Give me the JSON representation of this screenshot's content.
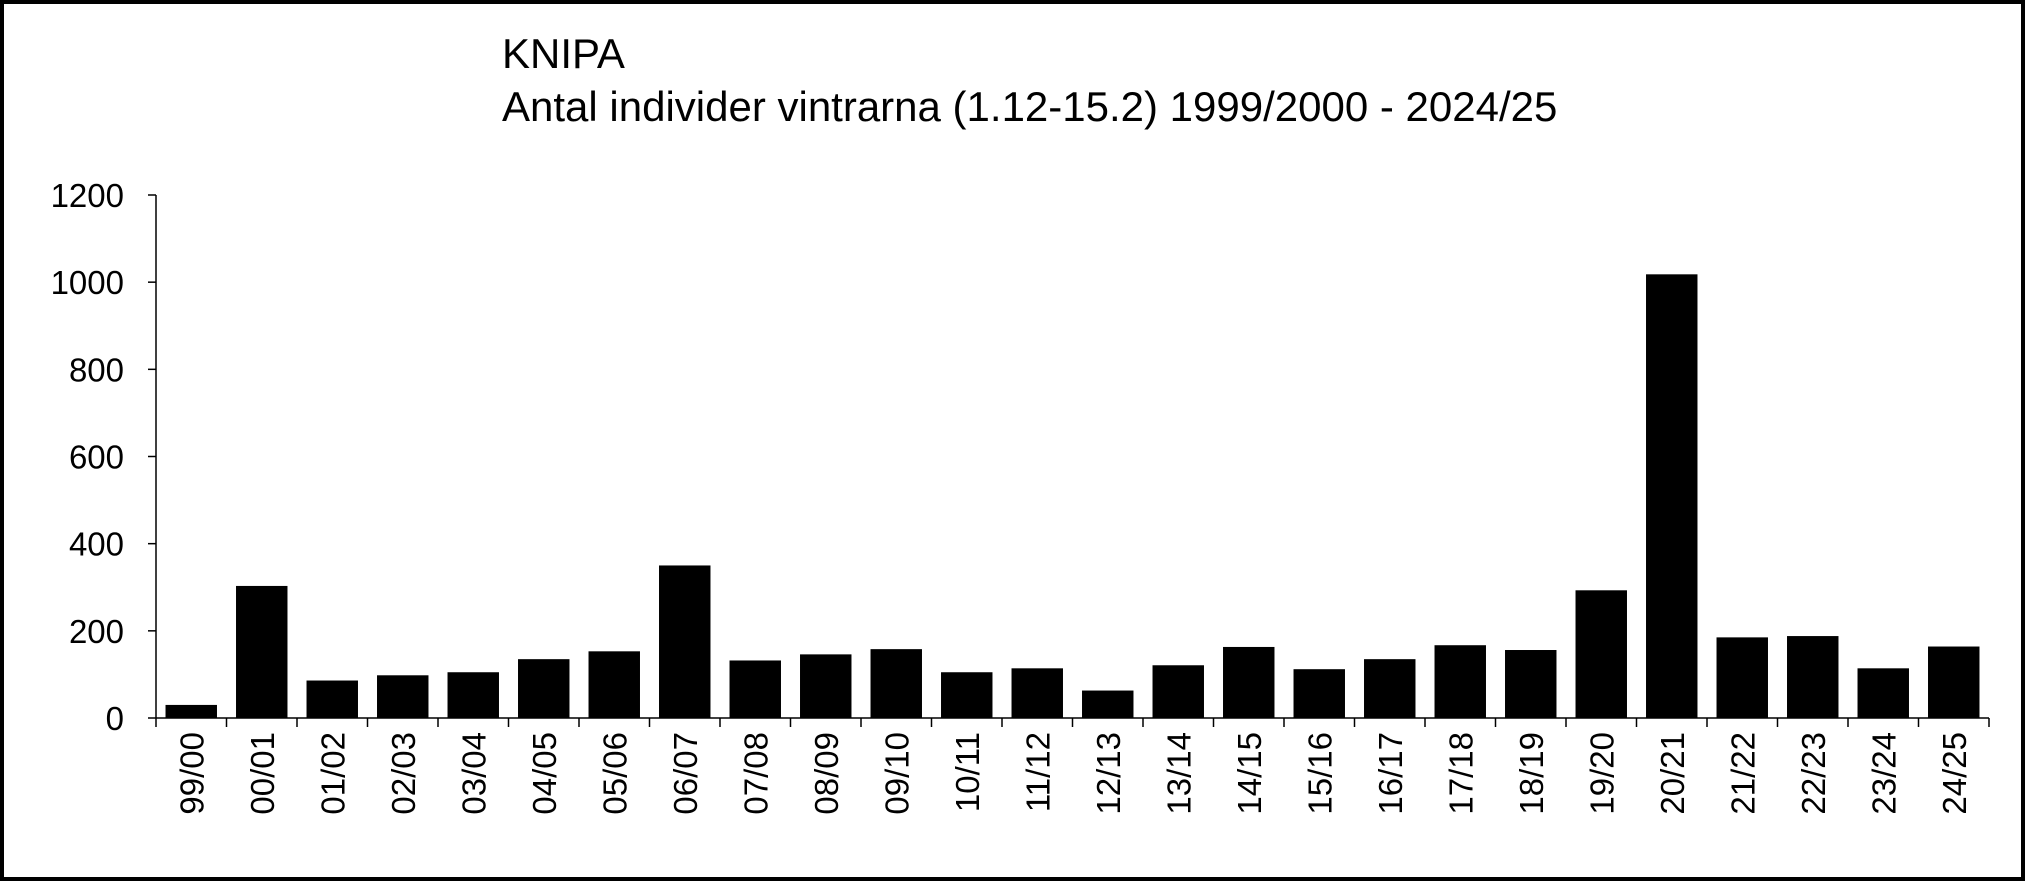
{
  "chart_data": {
    "type": "bar",
    "title": "KNIPA",
    "subtitle": "Antal individer vintrarna (1.12-15.2) 1999/2000 - 2024/25",
    "categories": [
      "99/00",
      "00/01",
      "01/02",
      "02/03",
      "03/04",
      "04/05",
      "05/06",
      "06/07",
      "07/08",
      "08/09",
      "09/10",
      "10/11",
      "11/12",
      "12/13",
      "13/14",
      "14/15",
      "15/16",
      "16/17",
      "17/18",
      "18/19",
      "19/20",
      "20/21",
      "21/22",
      "22/23",
      "23/24",
      "24/25"
    ],
    "values": [
      30,
      303,
      86,
      98,
      105,
      135,
      153,
      350,
      132,
      146,
      158,
      105,
      114,
      63,
      121,
      163,
      112,
      135,
      167,
      156,
      293,
      1018,
      185,
      188,
      114,
      164
    ],
    "color": "#000000",
    "ylim": [
      0,
      1200
    ],
    "yticks": [
      0,
      200,
      400,
      600,
      800,
      1000,
      1200
    ],
    "grid": false
  }
}
